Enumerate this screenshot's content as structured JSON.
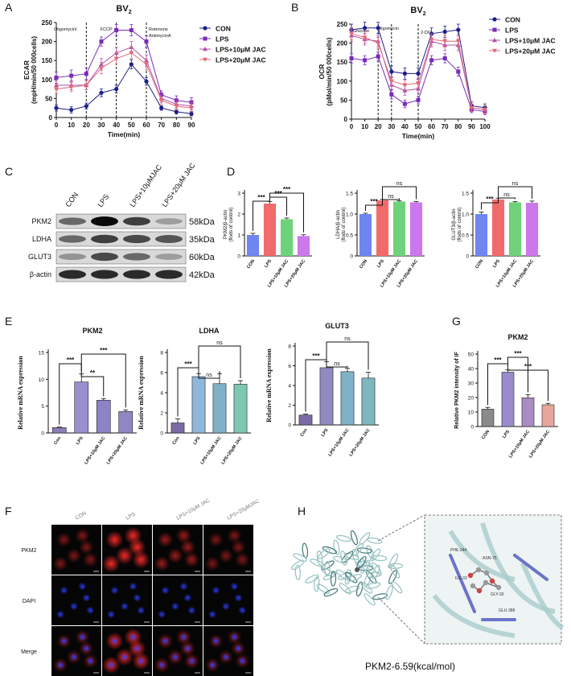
{
  "figure": {
    "panel_letters": [
      "A",
      "B",
      "C",
      "D",
      "E",
      "F",
      "G",
      "H"
    ],
    "colors": {
      "CON": "#1b1f8a",
      "LPS": "#7a2bb8",
      "JAC10": "#b34fa8",
      "JAC20": "#e06a79",
      "d_blue": "#6f86f0",
      "d_red": "#f26b6b",
      "d_green": "#6ed27a",
      "d_purple": "#cc78ec",
      "e_purple": "#8c7fb4",
      "e_blue": "#7fb0c8",
      "e_green": "#7fc7b0",
      "g_grey": "#8a8a8a",
      "g_purple": "#9a8ccd",
      "g_pink": "#c9a6d1",
      "g_salmon": "#e8a69a"
    }
  },
  "chart_data": [
    {
      "id": "A",
      "type": "line",
      "title": "BV₂",
      "xlabel": "Time(min)",
      "ylabel": "ECAR (mpH/min/50 000cells)",
      "xlim": [
        0,
        90
      ],
      "ylim": [
        0,
        250
      ],
      "x": [
        0,
        10,
        20,
        30,
        40,
        50,
        60,
        70,
        80,
        90
      ],
      "xticks": [
        0,
        10,
        20,
        30,
        40,
        50,
        60,
        70,
        80,
        90
      ],
      "yticks": [
        0,
        50,
        100,
        150,
        200,
        250
      ],
      "vlines": [
        20,
        40,
        60
      ],
      "annotations": [
        "Oligomycinl",
        "FCCP",
        "Rotenone",
        "AntimycinA"
      ],
      "legend": [
        "CON",
        "LPS",
        "LPS+10μM JAC",
        "LPS+20μM JAC"
      ],
      "series": [
        {
          "name": "CON",
          "values": [
            25,
            20,
            30,
            65,
            75,
            140,
            95,
            25,
            15,
            10
          ],
          "errors": [
            8,
            8,
            8,
            10,
            10,
            12,
            10,
            6,
            6,
            6
          ]
        },
        {
          "name": "LPS",
          "values": [
            105,
            110,
            115,
            200,
            230,
            230,
            200,
            60,
            45,
            40
          ],
          "errors": [
            15,
            15,
            15,
            12,
            15,
            15,
            15,
            10,
            12,
            12
          ]
        },
        {
          "name": "LPS+10μM JAC",
          "values": [
            85,
            85,
            85,
            140,
            170,
            185,
            150,
            50,
            35,
            30
          ],
          "errors": [
            12,
            12,
            12,
            15,
            15,
            15,
            15,
            10,
            10,
            10
          ]
        },
        {
          "name": "LPS+20μM JAC",
          "values": [
            75,
            80,
            85,
            130,
            155,
            170,
            140,
            45,
            30,
            25
          ],
          "errors": [
            12,
            12,
            12,
            15,
            15,
            15,
            15,
            10,
            10,
            10
          ]
        }
      ]
    },
    {
      "id": "B",
      "type": "line",
      "title": "BV₂",
      "xlabel": "Time(min)",
      "ylabel": "OCR (pMol/min/50 000cells)",
      "xlim": [
        0,
        100
      ],
      "ylim": [
        0,
        250
      ],
      "x": [
        0,
        10,
        20,
        30,
        40,
        50,
        60,
        70,
        80,
        90,
        100
      ],
      "xticks": [
        0,
        10,
        20,
        30,
        40,
        50,
        60,
        70,
        80,
        90,
        100
      ],
      "yticks": [
        0,
        50,
        100,
        150,
        200,
        250
      ],
      "vlines": [
        20,
        30,
        50
      ],
      "annotations": [
        "Glucose",
        "Oligomycin",
        "2-DG"
      ],
      "legend": [
        "CON",
        "LPS",
        "LPS+10μM JAC",
        "LPS+20μM JAC"
      ],
      "series": [
        {
          "name": "CON",
          "values": [
            235,
            240,
            240,
            125,
            120,
            120,
            225,
            230,
            235,
            35,
            30
          ],
          "errors": [
            15,
            15,
            15,
            15,
            15,
            15,
            15,
            15,
            15,
            10,
            10
          ]
        },
        {
          "name": "LPS",
          "values": [
            160,
            155,
            165,
            65,
            40,
            50,
            155,
            160,
            125,
            25,
            20
          ],
          "errors": [
            12,
            12,
            12,
            12,
            10,
            10,
            12,
            12,
            12,
            8,
            8
          ]
        },
        {
          "name": "LPS+10μM JAC",
          "values": [
            220,
            210,
            205,
            90,
            75,
            80,
            205,
            195,
            195,
            30,
            25
          ],
          "errors": [
            15,
            15,
            15,
            12,
            12,
            12,
            15,
            15,
            15,
            10,
            10
          ]
        },
        {
          "name": "LPS+20μM JAC",
          "values": [
            225,
            215,
            200,
            100,
            90,
            95,
            210,
            205,
            205,
            30,
            25
          ],
          "errors": [
            15,
            15,
            15,
            12,
            12,
            12,
            15,
            15,
            15,
            10,
            10
          ]
        }
      ]
    },
    {
      "id": "D1",
      "type": "bar",
      "ylabel": "PKM2/β-actin (flods of control)",
      "categories": [
        "CON",
        "LPS",
        "LPS+10μM JAC",
        "LPS+20μM JAC"
      ],
      "values": [
        1.0,
        2.5,
        1.75,
        0.95
      ],
      "errors": [
        0.08,
        0.1,
        0.06,
        0.06
      ],
      "ylim": [
        0,
        3
      ],
      "yticks": [
        0,
        1,
        2,
        3
      ],
      "sig": [
        {
          "from": 0,
          "to": 1,
          "label": "***"
        },
        {
          "from": 1,
          "to": 2,
          "label": "***"
        },
        {
          "from": 1,
          "to": 3,
          "label": "***"
        }
      ]
    },
    {
      "id": "D2",
      "type": "bar",
      "ylabel": "LDHA/β-actin (flods of control)",
      "categories": [
        "CON",
        "LPS",
        "LPS+10μM JAC",
        "LPS+20μM JAC"
      ],
      "values": [
        1.0,
        1.33,
        1.3,
        1.28
      ],
      "errors": [
        0.02,
        0.02,
        0.02,
        0.02
      ],
      "ylim": [
        0,
        1.5
      ],
      "yticks": [
        0,
        0.5,
        1.0,
        1.5
      ],
      "sig": [
        {
          "from": 0,
          "to": 1,
          "label": "***"
        },
        {
          "from": 1,
          "to": 2,
          "label": "ns"
        },
        {
          "from": 1,
          "to": 3,
          "label": "ns"
        }
      ]
    },
    {
      "id": "D3",
      "type": "bar",
      "ylabel": "GLUT3/β-actin (flods of control)",
      "categories": [
        "CON",
        "LPS",
        "LPS+10μM JAC",
        "LPS+20μM JAC"
      ],
      "values": [
        1.0,
        1.35,
        1.28,
        1.27
      ],
      "errors": [
        0.05,
        0.03,
        0.02,
        0.04
      ],
      "ylim": [
        0,
        1.5
      ],
      "yticks": [
        0,
        0.5,
        1.0,
        1.5
      ],
      "sig": [
        {
          "from": 0,
          "to": 1,
          "label": "***"
        },
        {
          "from": 1,
          "to": 2,
          "label": "ns"
        },
        {
          "from": 1,
          "to": 3,
          "label": "ns"
        }
      ]
    },
    {
      "id": "E1",
      "type": "bar",
      "title": "PKM2",
      "ylabel": "Relative mRNA expression",
      "categories": [
        "Con",
        "LPS",
        "LPS+10μM JAC",
        "LPS+20μM JAC"
      ],
      "values": [
        1.0,
        9.5,
        6.1,
        4.0
      ],
      "errors": [
        0.1,
        1.5,
        0.3,
        0.3
      ],
      "ylim": [
        0,
        15
      ],
      "yticks": [
        0,
        5,
        10,
        15
      ],
      "sig": [
        {
          "from": 0,
          "to": 1,
          "label": "***"
        },
        {
          "from": 1,
          "to": 2,
          "label": "**"
        },
        {
          "from": 1,
          "to": 3,
          "label": "***"
        }
      ]
    },
    {
      "id": "E2",
      "type": "bar",
      "title": "LDHA",
      "ylabel": "Relative mRNA expression",
      "categories": [
        "Con",
        "LPS",
        "LPS+10μM JAC",
        "LPS+20μM JAC"
      ],
      "values": [
        1.0,
        5.6,
        4.9,
        4.85
      ],
      "errors": [
        0.4,
        0.3,
        1.0,
        0.35
      ],
      "ylim": [
        0,
        8
      ],
      "yticks": [
        0,
        2,
        4,
        6,
        8
      ],
      "sig": [
        {
          "from": 0,
          "to": 1,
          "label": "***"
        },
        {
          "from": 1,
          "to": 2,
          "label": "ns"
        },
        {
          "from": 1,
          "to": 3,
          "label": "ns"
        }
      ]
    },
    {
      "id": "E3",
      "type": "bar",
      "title": "GLUT3",
      "ylabel": "Relative mRNA expression",
      "categories": [
        "Con",
        "LPS",
        "LPS+10μM JAC",
        "LPS+20μM JAC"
      ],
      "values": [
        1.0,
        5.8,
        5.4,
        4.75
      ],
      "errors": [
        0.1,
        0.6,
        0.35,
        0.6
      ],
      "ylim": [
        0,
        8
      ],
      "yticks": [
        0,
        2,
        4,
        6,
        8
      ],
      "sig": [
        {
          "from": 0,
          "to": 1,
          "label": "***"
        },
        {
          "from": 1,
          "to": 2,
          "label": "ns"
        },
        {
          "from": 1,
          "to": 3,
          "label": "ns"
        }
      ]
    },
    {
      "id": "G",
      "type": "bar",
      "title": "PKM2",
      "ylabel": "Relative PKM2 intensity of IF",
      "categories": [
        "CON",
        "LPS",
        "LPS+10μM JAC",
        "LPS+20μM JAC"
      ],
      "values": [
        12,
        37.5,
        19.8,
        15.0
      ],
      "errors": [
        1.2,
        1.6,
        2.2,
        1.0
      ],
      "ylim": [
        0,
        50
      ],
      "yticks": [
        0,
        10,
        20,
        30,
        40,
        50
      ],
      "sig": [
        {
          "from": 0,
          "to": 1,
          "label": "***"
        },
        {
          "from": 1,
          "to": 2,
          "label": "***"
        },
        {
          "from": 1,
          "to": 3,
          "label": "***"
        }
      ]
    }
  ],
  "blot": {
    "lanes": [
      "CON",
      "LPS",
      "LPS+10μMJAC",
      "LPS+20μM JAC"
    ],
    "rows": [
      {
        "protein": "PKM2",
        "size": "58kDa",
        "intensity": [
          0.55,
          1.0,
          0.75,
          0.3
        ]
      },
      {
        "protein": "LDHA",
        "size": "35kDa",
        "intensity": [
          0.55,
          0.75,
          0.7,
          0.65
        ]
      },
      {
        "protein": "GLUT3",
        "size": "60kDa",
        "intensity": [
          0.35,
          0.7,
          0.55,
          0.3
        ]
      },
      {
        "protein": "β-actin",
        "size": "42kDa",
        "intensity": [
          0.85,
          0.85,
          0.85,
          0.85
        ]
      }
    ]
  },
  "microscopy": {
    "columns": [
      "CON",
      "LPS",
      "LPS+10μM JAC",
      "LPS+20μMJAC"
    ],
    "rows": [
      "PKM2",
      "DAPI",
      "Merge"
    ],
    "pkm2_intensity": [
      0.35,
      1.0,
      0.5,
      0.35
    ]
  },
  "docking": {
    "caption": "PKM2-6.59(kcal/mol)",
    "residue_labels": [
      "PHE-244",
      "ASN-75",
      "GLU-388",
      "ILE-33",
      "GLY-33"
    ]
  }
}
